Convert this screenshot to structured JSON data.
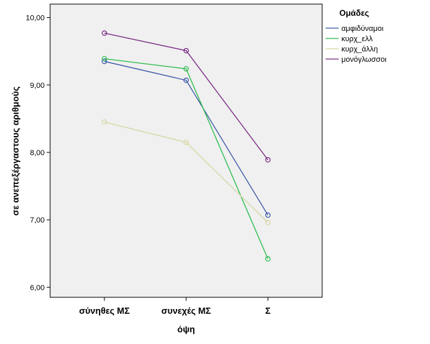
{
  "chart_data": {
    "type": "line",
    "title": "",
    "xlabel": "όψη",
    "ylabel": "σε ανεπεξέργαστους αριθμούς",
    "categories": [
      "σύνηθες ΜΣ",
      "συνεχές ΜΣ",
      "Σ"
    ],
    "ylim": [
      5.85,
      10.2
    ],
    "yticks": [
      6.0,
      7.0,
      8.0,
      9.0,
      10.0
    ],
    "ytick_labels": [
      "6,00",
      "7,00",
      "8,00",
      "9,00",
      "10,00"
    ],
    "grid": false,
    "legend": {
      "title": "Ομάδες",
      "placement": "top-right"
    },
    "series": [
      {
        "name": "αμφιδύναμοι",
        "color": "#3e5aa8",
        "values": [
          9.35,
          9.07,
          7.07
        ]
      },
      {
        "name": "κυρχ_ελλ",
        "color": "#2ebc4f",
        "values": [
          9.39,
          9.24,
          6.42
        ]
      },
      {
        "name": "κυρχ_άλλη",
        "color": "#d7d7a4",
        "values": [
          8.45,
          8.15,
          6.96
        ]
      },
      {
        "name": "μονόγλωσσοι",
        "color": "#7a2a84",
        "values": [
          9.77,
          9.51,
          7.89
        ]
      }
    ],
    "plot_background": "#f0f0f0"
  }
}
